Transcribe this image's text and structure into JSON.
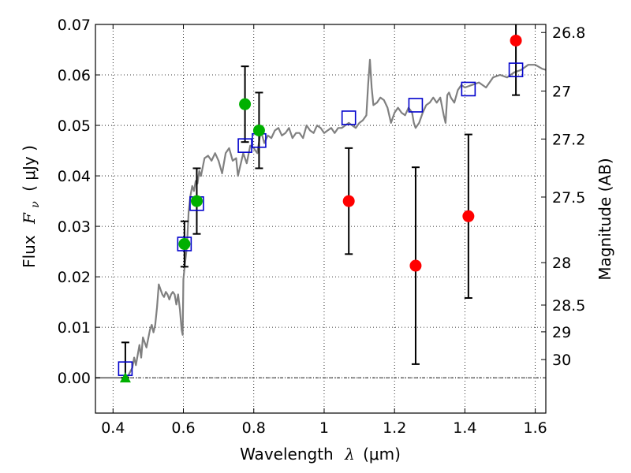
{
  "chart_data": {
    "type": "scatter",
    "xlabel": "Wavelength",
    "xlabel_symbol": "λ",
    "xlabel_unit": "(μm)",
    "ylabel": "Flux",
    "ylabel_symbol": "F",
    "ylabel_subscript": "ν",
    "ylabel_unit": "( μJy )",
    "y2label": "Magnitude (AB)",
    "xlim": [
      0.35,
      1.63
    ],
    "ylim": [
      -0.007,
      0.07
    ],
    "grid": true,
    "x_ticks": [
      0.4,
      0.6,
      0.8,
      1.0,
      1.2,
      1.4,
      1.6
    ],
    "x_tick_labels": [
      "0.4",
      "0.6",
      "0.8",
      "1",
      "1.2",
      "1.4",
      "1.6"
    ],
    "y_ticks": [
      0.0,
      0.01,
      0.02,
      0.03,
      0.04,
      0.05,
      0.06,
      0.07
    ],
    "y_tick_labels": [
      "0.00",
      "0.01",
      "0.02",
      "0.03",
      "0.04",
      "0.05",
      "0.06",
      "0.07"
    ],
    "y2_ticks": [
      {
        "label": "26.8",
        "flux": 0.0684
      },
      {
        "label": "27",
        "flux": 0.0568
      },
      {
        "label": "27.2",
        "flux": 0.0473
      },
      {
        "label": "27.5",
        "flux": 0.0358
      },
      {
        "label": "28",
        "flux": 0.0228
      },
      {
        "label": "28.5",
        "flux": 0.0144
      },
      {
        "label": "29",
        "flux": 0.0091
      },
      {
        "label": "30",
        "flux": 0.0036
      }
    ],
    "colors": {
      "template": "#808080",
      "model_squares": "#0000cc",
      "detections": "#00b000",
      "nondetections": "#ff0000",
      "errorbar": "#000000",
      "grid": "#000000"
    },
    "series": [
      {
        "name": "SED template",
        "kind": "line",
        "points": [
          [
            0.35,
            0.0
          ],
          [
            0.41,
            0.0
          ],
          [
            0.44,
            0.0
          ],
          [
            0.455,
            0.002
          ],
          [
            0.46,
            0.004
          ],
          [
            0.465,
            0.0025
          ],
          [
            0.475,
            0.0065
          ],
          [
            0.48,
            0.004
          ],
          [
            0.485,
            0.008
          ],
          [
            0.495,
            0.006
          ],
          [
            0.505,
            0.0095
          ],
          [
            0.51,
            0.0105
          ],
          [
            0.515,
            0.009
          ],
          [
            0.52,
            0.0105
          ],
          [
            0.525,
            0.014
          ],
          [
            0.53,
            0.0185
          ],
          [
            0.535,
            0.0175
          ],
          [
            0.54,
            0.0165
          ],
          [
            0.545,
            0.016
          ],
          [
            0.55,
            0.017
          ],
          [
            0.555,
            0.0165
          ],
          [
            0.56,
            0.0155
          ],
          [
            0.565,
            0.0165
          ],
          [
            0.57,
            0.017
          ],
          [
            0.575,
            0.0165
          ],
          [
            0.58,
            0.0145
          ],
          [
            0.585,
            0.0165
          ],
          [
            0.59,
            0.0135
          ],
          [
            0.595,
            0.0095
          ],
          [
            0.598,
            0.0085
          ],
          [
            0.6,
            0.0195
          ],
          [
            0.605,
            0.023
          ],
          [
            0.61,
            0.026
          ],
          [
            0.615,
            0.033
          ],
          [
            0.62,
            0.036
          ],
          [
            0.625,
            0.038
          ],
          [
            0.63,
            0.037
          ],
          [
            0.635,
            0.039
          ],
          [
            0.64,
            0.0385
          ],
          [
            0.645,
            0.041
          ],
          [
            0.65,
            0.04
          ],
          [
            0.66,
            0.0435
          ],
          [
            0.67,
            0.044
          ],
          [
            0.68,
            0.043
          ],
          [
            0.69,
            0.0445
          ],
          [
            0.7,
            0.043
          ],
          [
            0.71,
            0.0405
          ],
          [
            0.72,
            0.0445
          ],
          [
            0.73,
            0.0455
          ],
          [
            0.74,
            0.043
          ],
          [
            0.75,
            0.0435
          ],
          [
            0.755,
            0.04
          ],
          [
            0.76,
            0.0415
          ],
          [
            0.77,
            0.0445
          ],
          [
            0.78,
            0.0425
          ],
          [
            0.79,
            0.046
          ],
          [
            0.8,
            0.0455
          ],
          [
            0.81,
            0.0445
          ],
          [
            0.82,
            0.049
          ],
          [
            0.83,
            0.0465
          ],
          [
            0.84,
            0.048
          ],
          [
            0.85,
            0.0475
          ],
          [
            0.86,
            0.049
          ],
          [
            0.87,
            0.0495
          ],
          [
            0.88,
            0.048
          ],
          [
            0.89,
            0.0485
          ],
          [
            0.9,
            0.0495
          ],
          [
            0.91,
            0.0475
          ],
          [
            0.92,
            0.0485
          ],
          [
            0.93,
            0.0485
          ],
          [
            0.94,
            0.0475
          ],
          [
            0.95,
            0.05
          ],
          [
            0.96,
            0.049
          ],
          [
            0.97,
            0.0485
          ],
          [
            0.98,
            0.05
          ],
          [
            0.99,
            0.0495
          ],
          [
            1.0,
            0.0485
          ],
          [
            1.01,
            0.049
          ],
          [
            1.02,
            0.0495
          ],
          [
            1.03,
            0.0485
          ],
          [
            1.04,
            0.0495
          ],
          [
            1.05,
            0.0495
          ],
          [
            1.06,
            0.05
          ],
          [
            1.07,
            0.0505
          ],
          [
            1.08,
            0.05
          ],
          [
            1.09,
            0.0495
          ],
          [
            1.1,
            0.0505
          ],
          [
            1.11,
            0.051
          ],
          [
            1.12,
            0.052
          ],
          [
            1.125,
            0.058
          ],
          [
            1.13,
            0.063
          ],
          [
            1.135,
            0.0575
          ],
          [
            1.14,
            0.054
          ],
          [
            1.15,
            0.0545
          ],
          [
            1.16,
            0.0555
          ],
          [
            1.17,
            0.055
          ],
          [
            1.18,
            0.0535
          ],
          [
            1.19,
            0.0505
          ],
          [
            1.2,
            0.0525
          ],
          [
            1.21,
            0.0535
          ],
          [
            1.22,
            0.0525
          ],
          [
            1.23,
            0.052
          ],
          [
            1.24,
            0.0535
          ],
          [
            1.25,
            0.0525
          ],
          [
            1.255,
            0.0505
          ],
          [
            1.26,
            0.0495
          ],
          [
            1.27,
            0.0505
          ],
          [
            1.28,
            0.0525
          ],
          [
            1.29,
            0.054
          ],
          [
            1.3,
            0.0545
          ],
          [
            1.31,
            0.0555
          ],
          [
            1.32,
            0.0545
          ],
          [
            1.33,
            0.0555
          ],
          [
            1.34,
            0.052
          ],
          [
            1.345,
            0.0505
          ],
          [
            1.35,
            0.056
          ],
          [
            1.355,
            0.0565
          ],
          [
            1.36,
            0.0555
          ],
          [
            1.37,
            0.0545
          ],
          [
            1.38,
            0.057
          ],
          [
            1.39,
            0.058
          ],
          [
            1.4,
            0.0575
          ],
          [
            1.42,
            0.058
          ],
          [
            1.44,
            0.0585
          ],
          [
            1.46,
            0.0575
          ],
          [
            1.48,
            0.0595
          ],
          [
            1.5,
            0.06
          ],
          [
            1.52,
            0.0595
          ],
          [
            1.54,
            0.0605
          ],
          [
            1.56,
            0.061
          ],
          [
            1.58,
            0.062
          ],
          [
            1.6,
            0.062
          ],
          [
            1.62,
            0.0612
          ],
          [
            1.63,
            0.061
          ]
        ]
      },
      {
        "name": "Model band fluxes",
        "kind": "open-square",
        "points": [
          [
            0.435,
            0.0018
          ],
          [
            0.603,
            0.0265
          ],
          [
            0.638,
            0.0345
          ],
          [
            0.775,
            0.046
          ],
          [
            0.815,
            0.047
          ],
          [
            1.07,
            0.0515
          ],
          [
            1.26,
            0.054
          ],
          [
            1.41,
            0.0572
          ],
          [
            1.545,
            0.061
          ]
        ]
      },
      {
        "name": "Detections",
        "kind": "filled-circle",
        "points": [
          {
            "x": 0.603,
            "y": 0.0265,
            "err": 0.0045
          },
          {
            "x": 0.638,
            "y": 0.035,
            "err": 0.0065
          },
          {
            "x": 0.775,
            "y": 0.0542,
            "err": 0.0075
          },
          {
            "x": 0.815,
            "y": 0.049,
            "err": 0.0075
          }
        ]
      },
      {
        "name": "Upper limit",
        "kind": "triangle-up",
        "points": [
          {
            "x": 0.435,
            "y": 0.0,
            "err_low": 0.0,
            "err_high": 0.007
          }
        ]
      },
      {
        "name": "Non-detections",
        "kind": "filled-circle",
        "points": [
          {
            "x": 1.07,
            "y": 0.035,
            "err": 0.0105
          },
          {
            "x": 1.26,
            "y": 0.0222,
            "err": 0.0195
          },
          {
            "x": 1.41,
            "y": 0.032,
            "err": 0.0162
          },
          {
            "x": 1.545,
            "y": 0.0668,
            "err": 0.0108
          }
        ]
      }
    ]
  }
}
